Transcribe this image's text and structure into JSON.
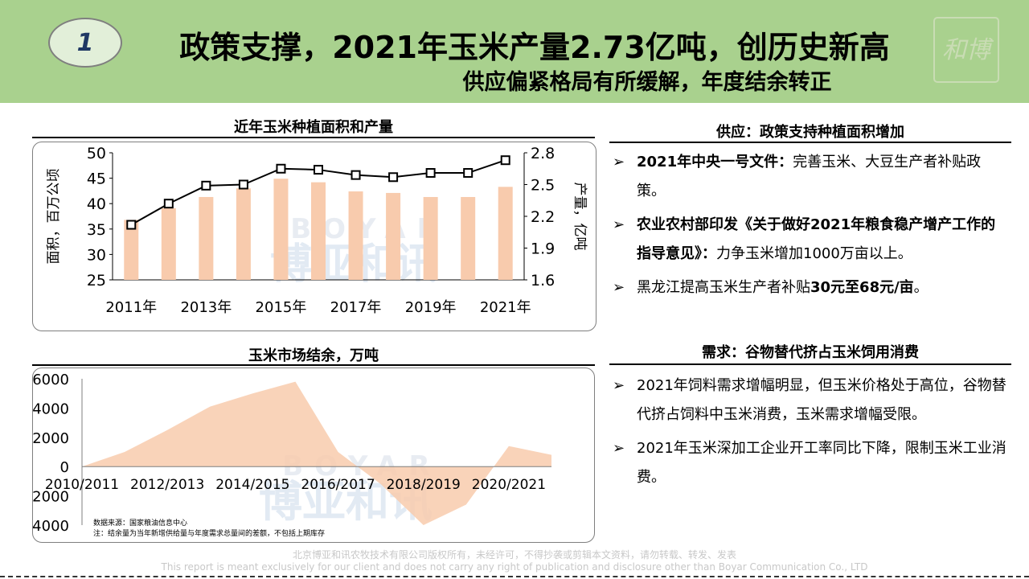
{
  "header": {
    "badge": "1",
    "title": "政策支撑，2021年玉米产量2.73亿吨，创历史新高",
    "subtitle": "供应偏紧格局有所缓解，年度结余转正",
    "logo_text": "和博讯亚"
  },
  "left": {
    "chart1_heading": "近年玉米种植面积和产量",
    "chart2_heading": "玉米市场结余，万吨",
    "watermark_text": "博亚和讯",
    "watermark_latin": "BOYAR"
  },
  "right": {
    "supply_heading": "供应：政策支持种植面积增加",
    "supply_bullets": [
      {
        "bold": "2021年中央一号文件：",
        "text": "完善玉米、大豆生产者补贴政策。"
      },
      {
        "bold": "农业农村部印发《关于做好2021年粮食稳产增产工作的指导意见》：",
        "text": "力争玉米增加1000万亩以上。"
      },
      {
        "bold": "",
        "text": "黑龙江提高玉米生产者补贴",
        "bold2": "30元至68元/亩",
        "text2": "。"
      }
    ],
    "demand_heading": "需求：谷物替代挤占玉米饲用消费",
    "demand_bullets": [
      {
        "text": "2021年饲料需求增幅明显，但玉米价格处于高位，谷物替代挤占饲料中玉米消费，玉米需求增幅受限。"
      },
      {
        "text": "2021年玉米深加工企业开工率同比下降，限制玉米工业消费。"
      }
    ],
    "arrow": "➢"
  },
  "footer": {
    "line1": "北京博亚和讯农牧技术有限公司版权所有，未经许可，不得抄袭或剪辑本文资料，请勿转载、转发、发表",
    "line2": "This report is meant exclusively for our client and does not carry any right of publication and disclosure other than Boyar Communication Co., LTD"
  },
  "chart_data": [
    {
      "type": "bar",
      "categories": [
        "2011年",
        "2012年",
        "2013年",
        "2014年",
        "2015年",
        "2016年",
        "2017年",
        "2018年",
        "2019年",
        "2020年",
        "2021年"
      ],
      "x_tick_labels": [
        "2011年",
        "2013年",
        "2015年",
        "2017年",
        "2019年",
        "2021年"
      ],
      "series": [
        {
          "values": [
            36.8,
            39.1,
            41.3,
            43.0,
            44.9,
            44.2,
            42.4,
            42.1,
            41.3,
            41.3,
            43.3
          ],
          "axis": "left",
          "color": "#f8cbad"
        },
        {
          "values": [
            2.12,
            2.32,
            2.49,
            2.5,
            2.65,
            2.64,
            2.59,
            2.57,
            2.61,
            2.61,
            2.73
          ],
          "axis": "right",
          "type": "line",
          "color": "#000000"
        }
      ],
      "ylabel": "面积，百万公顷",
      "y2label": "产量，亿吨",
      "ylim": [
        25,
        50
      ],
      "y_ticks": [
        25,
        30,
        35,
        40,
        45,
        50
      ],
      "y2lim": [
        1.6,
        2.8
      ],
      "y2_ticks": [
        1.6,
        1.9,
        2.2,
        2.5,
        2.8
      ],
      "legend": "none",
      "grid": false
    },
    {
      "type": "area",
      "x": [
        "2010/2011",
        "2011/2012",
        "2012/2013",
        "2013/2014",
        "2014/2015",
        "2015/2016",
        "2016/2017",
        "2017/2018",
        "2018/2019",
        "2019/2020",
        "2020/2021",
        "2021/2022"
      ],
      "x_tick_labels": [
        "2010/2011",
        "2012/2013",
        "2014/2015",
        "2016/2017",
        "2018/2019",
        "2020/2021"
      ],
      "values": [
        0,
        1000,
        2500,
        4100,
        5000,
        5800,
        1000,
        -1200,
        -4000,
        -2600,
        1400,
        800
      ],
      "ylim": [
        -4000,
        6000
      ],
      "y_ticks": [
        -4000,
        -2000,
        0,
        2000,
        4000,
        6000
      ],
      "color": "#f8cbad",
      "source_note": "数据来源：国家粮油信息中心",
      "footnote": "注：结余量为当年新增供给量与年度需求总量间的差额，不包括上期库存",
      "legend": "none",
      "grid": false
    }
  ]
}
